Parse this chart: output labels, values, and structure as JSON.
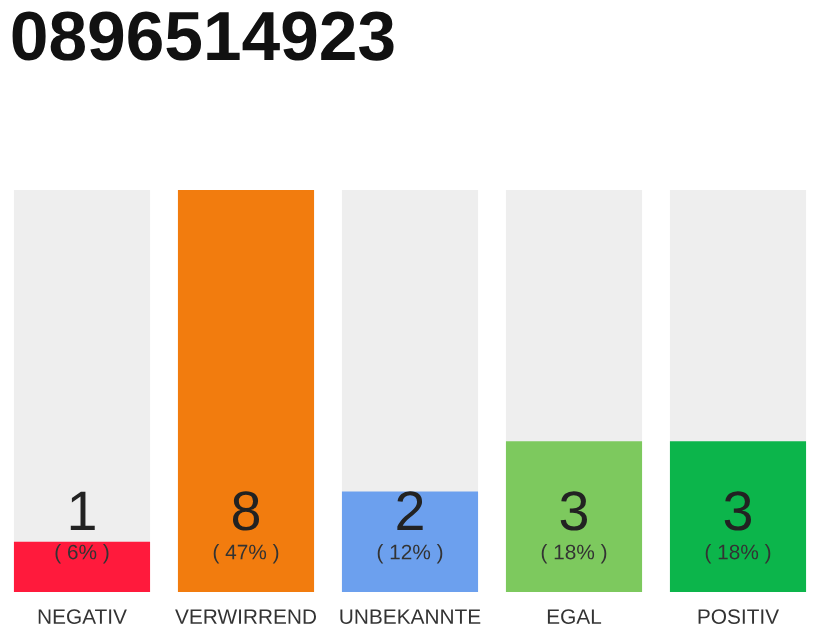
{
  "chart_data": {
    "type": "bar",
    "title": "0896514923",
    "categories": [
      "NEGATIV",
      "VERWIRREND",
      "UNBEKANNTE",
      "EGAL",
      "POSITIV"
    ],
    "values": [
      1,
      8,
      2,
      3,
      3
    ],
    "colors": [
      "#ff1a3c",
      "#f27c0e",
      "#6ca0ee",
      "#7dc95e",
      "#0cb54b"
    ],
    "data_labels": true,
    "annotations": [
      "( 6% )",
      "( 47% )",
      "( 12% )",
      "( 18% )",
      "( 18% )"
    ],
    "grid": false
  }
}
